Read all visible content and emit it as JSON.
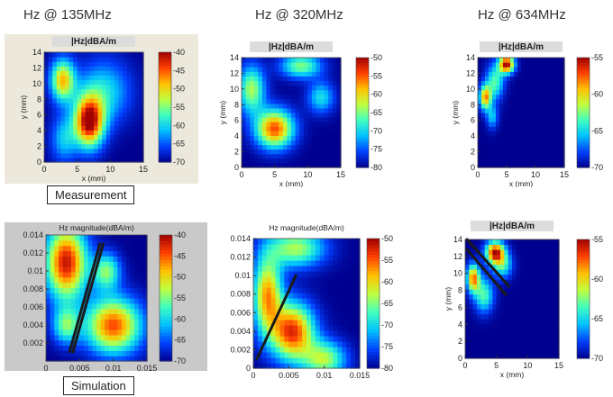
{
  "column_titles": [
    "Hz @ 135MHz",
    "Hz @ 320MHz",
    "Hz @ 634MHz"
  ],
  "row_labels": [
    "Measurement",
    "Simulation"
  ],
  "colormap": [
    "#00008f",
    "#0040ff",
    "#00c0ff",
    "#40ffc0",
    "#c0ff40",
    "#ffc000",
    "#ff4000",
    "#a00000"
  ],
  "chart_data": [
    {
      "id": "meas-135",
      "type": "heatmap",
      "title": "|Hz|dBA/m",
      "xlabel": "x (mm)",
      "ylabel": "y (mm)",
      "xlim": [
        0,
        15
      ],
      "ylim": [
        0,
        14
      ],
      "xticks": [
        0,
        5,
        10,
        15
      ],
      "yticks": [
        0,
        2,
        4,
        6,
        8,
        10,
        12,
        14
      ],
      "cbar": [
        -70,
        -40
      ],
      "cbar_ticks": [
        -40,
        -45,
        -50,
        -55,
        -60,
        -65,
        -70
      ],
      "blobs": [
        [
          6.8,
          5.2,
          2.2,
          3.2,
          1.0
        ],
        [
          2.8,
          10.5,
          1.8,
          2.6,
          0.7
        ],
        [
          9,
          9,
          4,
          4,
          0.35
        ],
        [
          3,
          3,
          2,
          3,
          0.3
        ]
      ]
    },
    {
      "id": "meas-320",
      "type": "heatmap",
      "title": "|Hz|dBA/m",
      "xlabel": "x (mm)",
      "ylabel": "y (mm)",
      "xlim": [
        0,
        15
      ],
      "ylim": [
        0,
        14
      ],
      "xticks": [
        0,
        5,
        10,
        15
      ],
      "yticks": [
        0,
        2,
        4,
        6,
        8,
        10,
        12,
        14
      ],
      "cbar": [
        -80,
        -50
      ],
      "cbar_ticks": [
        -50,
        -55,
        -60,
        -65,
        -70,
        -75,
        -80
      ],
      "blobs": [
        [
          5,
          5,
          2.8,
          2.4,
          0.85
        ],
        [
          1.5,
          10,
          2,
          3,
          0.55
        ],
        [
          9,
          13,
          3,
          1.5,
          0.5
        ],
        [
          12,
          9,
          2,
          2,
          0.35
        ]
      ]
    },
    {
      "id": "meas-634",
      "type": "heatmap",
      "title": "|Hz|dBA/m",
      "xlabel": "x (mm)",
      "ylabel": "y (mm)",
      "xlim": [
        0,
        15
      ],
      "ylim": [
        0,
        14
      ],
      "xticks": [
        0,
        5,
        10,
        15
      ],
      "yticks": [
        0,
        2,
        4,
        6,
        8,
        10,
        12,
        14
      ],
      "cbar": [
        -70,
        -55
      ],
      "cbar_ticks": [
        -55,
        -60,
        -65,
        -70
      ],
      "blobs": [
        [
          5,
          13.2,
          1.3,
          1.1,
          1.0
        ],
        [
          1.3,
          9,
          1.0,
          1.5,
          0.75
        ],
        [
          3,
          11,
          1.5,
          2.2,
          0.45
        ],
        [
          2.5,
          6.5,
          1,
          1.5,
          0.3
        ]
      ]
    },
    {
      "id": "sim-135",
      "type": "heatmap",
      "title": "Hz magnitude(dBA/m)",
      "xlabel": "",
      "ylabel": "",
      "xlim": [
        0,
        0.015
      ],
      "ylim": [
        0,
        0.014
      ],
      "xticks": [
        0,
        0.005,
        0.01,
        0.015
      ],
      "yticks": [
        0.002,
        0.004,
        0.006,
        0.008,
        0.01,
        0.012,
        0.014
      ],
      "cbar": [
        -70,
        -40
      ],
      "cbar_ticks": [
        -40,
        -45,
        -50,
        -55,
        -60,
        -65,
        -70
      ],
      "blobs": [
        [
          0.003,
          0.011,
          0.003,
          0.004,
          0.95
        ],
        [
          0.01,
          0.004,
          0.004,
          0.003,
          0.85
        ],
        [
          0.009,
          0.01,
          0.002,
          0.002,
          0.5
        ],
        [
          0.003,
          0.004,
          0.002,
          0.002,
          0.45
        ]
      ],
      "lines": [
        [
          0.0035,
          0.001,
          0.008,
          0.013
        ],
        [
          0.004,
          0.001,
          0.0085,
          0.013
        ]
      ]
    },
    {
      "id": "sim-320",
      "type": "heatmap",
      "title": "Hz magnitude(dBA/m)",
      "xlabel": "",
      "ylabel": "",
      "xlim": [
        0,
        0.015
      ],
      "ylim": [
        0,
        0.014
      ],
      "xticks": [
        0,
        0.005,
        0.01,
        0.015
      ],
      "yticks": [
        0,
        0.002,
        0.004,
        0.006,
        0.008,
        0.01,
        0.012,
        0.014
      ],
      "cbar": [
        -80,
        -50
      ],
      "cbar_ticks": [
        -50,
        -55,
        -60,
        -65,
        -70,
        -75,
        -80
      ],
      "blobs": [
        [
          0.0055,
          0.004,
          0.003,
          0.003,
          0.9
        ],
        [
          0.002,
          0.008,
          0.002,
          0.004,
          0.75
        ],
        [
          0.006,
          0.013,
          0.004,
          0.002,
          0.55
        ],
        [
          0.01,
          0.001,
          0.003,
          0.002,
          0.55
        ]
      ],
      "lines": [
        [
          0.0005,
          0.001,
          0.006,
          0.01
        ]
      ]
    },
    {
      "id": "sim-634",
      "type": "heatmap",
      "title": "|Hz|dBA/m",
      "xlabel": "x (mm)",
      "ylabel": "y (mm)",
      "xlim": [
        0,
        15
      ],
      "ylim": [
        0,
        14
      ],
      "xticks": [
        0,
        5,
        10,
        15
      ],
      "yticks": [
        0,
        2,
        4,
        6,
        8,
        10,
        12,
        14
      ],
      "cbar": [
        -70,
        -55
      ],
      "cbar_ticks": [
        -55,
        -60,
        -65,
        -70
      ],
      "blobs": [
        [
          4.8,
          12.5,
          1.5,
          1.3,
          0.95
        ],
        [
          1.3,
          9.5,
          1.0,
          1.6,
          0.8
        ],
        [
          3,
          7.5,
          1.5,
          2.0,
          0.45
        ],
        [
          6,
          11,
          1.5,
          1.5,
          0.4
        ]
      ],
      "lines": [
        [
          0.3,
          12.8,
          6.5,
          7.5
        ],
        [
          0.3,
          14,
          7,
          8.5
        ]
      ]
    }
  ]
}
